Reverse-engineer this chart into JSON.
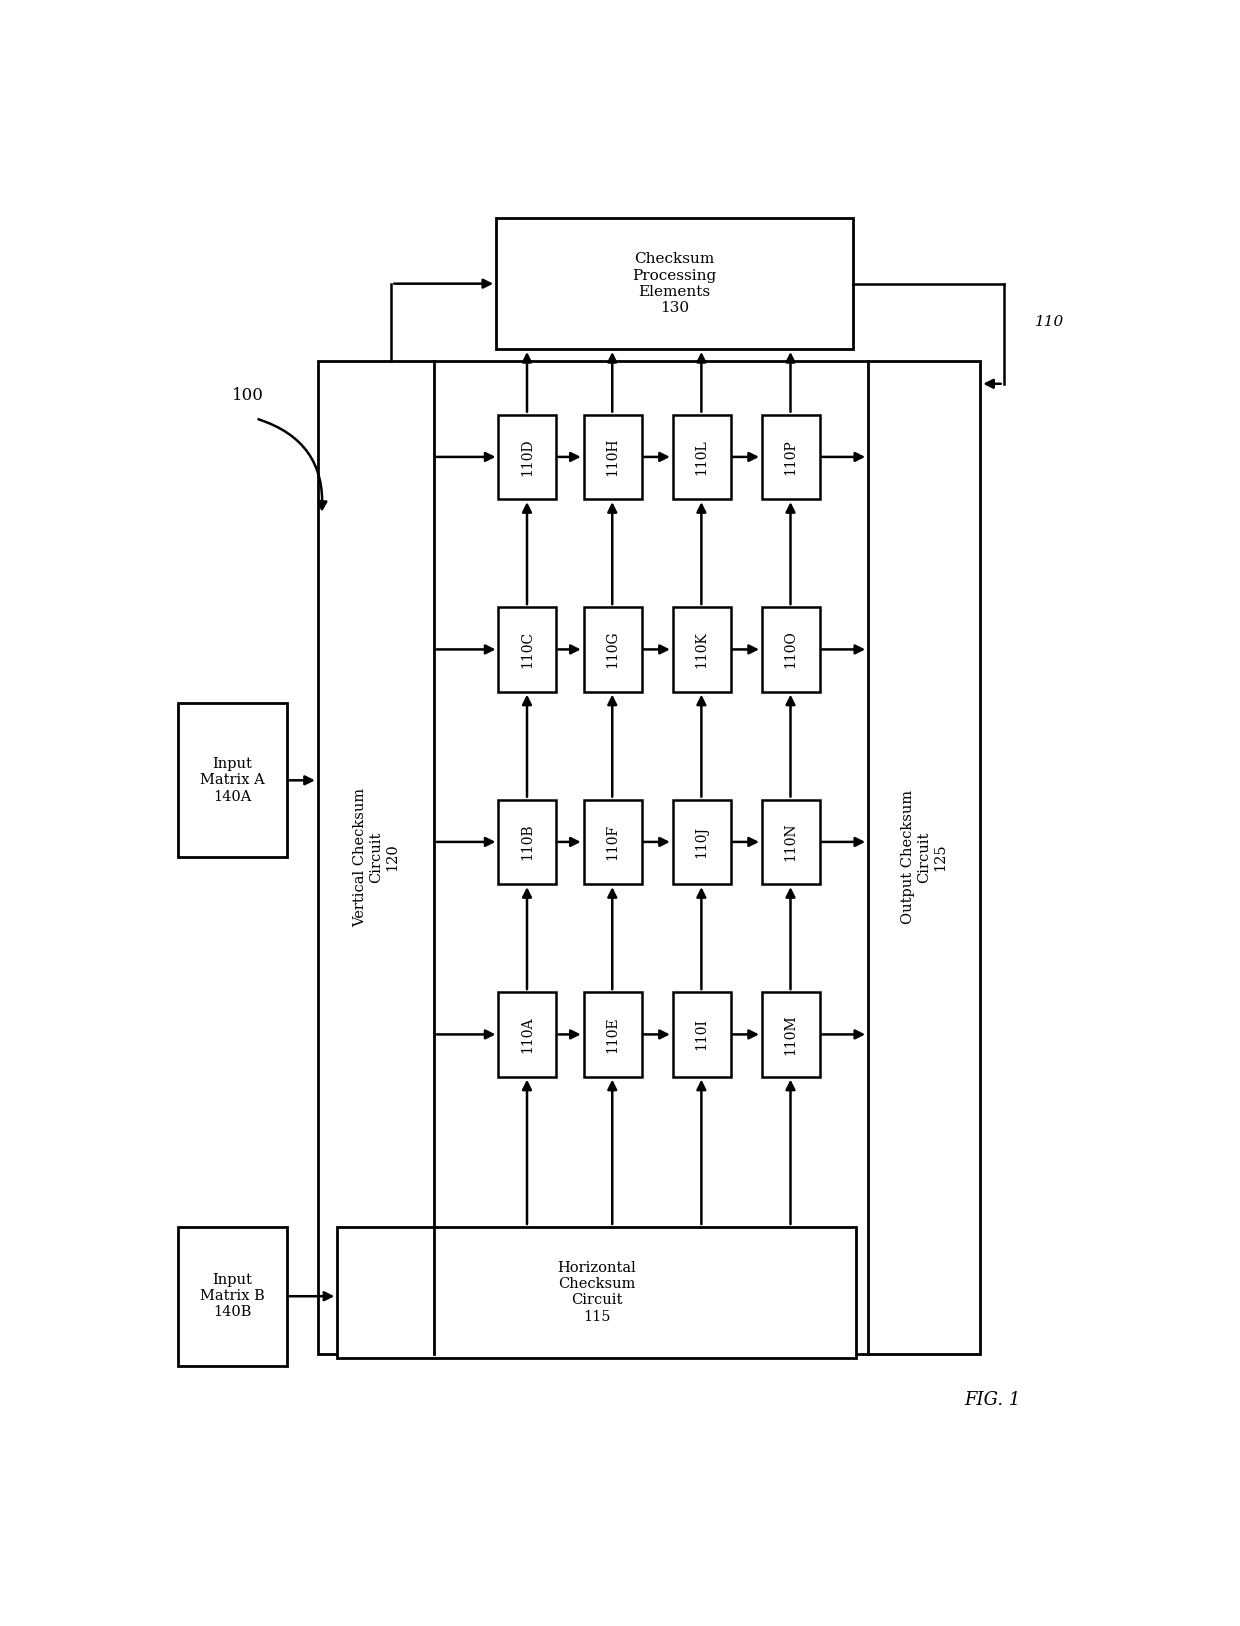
{
  "bg_color": "#ffffff",
  "title": "FIG. 1",
  "input_a_label": "Input\nMatrix A\n140A",
  "input_b_label": "Input\nMatrix B\n140B",
  "horiz_checksum_label": "Horizontal\nChecksum\nCircuit\n115",
  "vert_checksum_label": "Vertical Checksum\nCircuit\n120",
  "output_checksum_label": "Output Checksum\nCircuit\n125",
  "cpe_label": "Checksum\nProcessing\nElements\n130",
  "label_100": "100",
  "label_110": "110",
  "pe_grid": [
    [
      "110D",
      "110H",
      "110L",
      "110P"
    ],
    [
      "110C",
      "110G",
      "110K",
      "110O"
    ],
    [
      "110B",
      "110F",
      "110J",
      "110N"
    ],
    [
      "110A",
      "110E",
      "110I",
      "110M"
    ]
  ]
}
